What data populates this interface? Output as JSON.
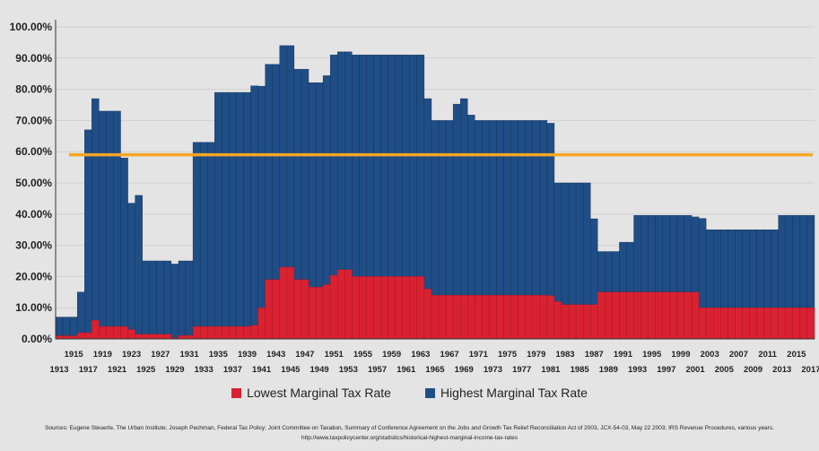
{
  "chart_data": {
    "type": "bar",
    "x": [
      1913,
      1914,
      1915,
      1916,
      1917,
      1918,
      1919,
      1920,
      1921,
      1922,
      1923,
      1924,
      1925,
      1926,
      1927,
      1928,
      1929,
      1930,
      1931,
      1932,
      1933,
      1934,
      1935,
      1936,
      1937,
      1938,
      1939,
      1940,
      1941,
      1942,
      1943,
      1944,
      1945,
      1946,
      1947,
      1948,
      1949,
      1950,
      1951,
      1952,
      1953,
      1954,
      1955,
      1956,
      1957,
      1958,
      1959,
      1960,
      1961,
      1962,
      1963,
      1964,
      1965,
      1966,
      1967,
      1968,
      1969,
      1970,
      1971,
      1972,
      1973,
      1974,
      1975,
      1976,
      1977,
      1978,
      1979,
      1980,
      1981,
      1982,
      1983,
      1984,
      1985,
      1986,
      1987,
      1988,
      1989,
      1990,
      1991,
      1992,
      1993,
      1994,
      1995,
      1996,
      1997,
      1998,
      1999,
      2000,
      2001,
      2002,
      2003,
      2004,
      2005,
      2006,
      2007,
      2008,
      2009,
      2010,
      2011,
      2012,
      2013,
      2014,
      2015,
      2016,
      2017
    ],
    "series": [
      {
        "name": "Highest Marginal Tax Rate",
        "color": "#1f4e86",
        "values": [
          7,
          7,
          7,
          15,
          67,
          77,
          73,
          73,
          73,
          58,
          43.5,
          46,
          25,
          25,
          25,
          25,
          24,
          25,
          25,
          63,
          63,
          63,
          79,
          79,
          79,
          79,
          79,
          81.1,
          81,
          88,
          88,
          94,
          94,
          86.45,
          86.45,
          82.13,
          82.13,
          84.36,
          91,
          92,
          92,
          91,
          91,
          91,
          91,
          91,
          91,
          91,
          91,
          91,
          91,
          77,
          70,
          70,
          70,
          75.25,
          77,
          71.75,
          70,
          70,
          70,
          70,
          70,
          70,
          70,
          70,
          70,
          70,
          69.13,
          50,
          50,
          50,
          50,
          50,
          38.5,
          28,
          28,
          28,
          31,
          31,
          39.6,
          39.6,
          39.6,
          39.6,
          39.6,
          39.6,
          39.6,
          39.6,
          39.1,
          38.6,
          35,
          35,
          35,
          35,
          35,
          35,
          35,
          35,
          35,
          35,
          39.6,
          39.6,
          39.6,
          39.6,
          39.6
        ]
      },
      {
        "name": "Lowest Marginal Tax Rate",
        "color": "#d92231",
        "values": [
          1,
          1,
          1,
          2,
          2,
          6,
          4,
          4,
          4,
          4,
          3,
          1.5,
          1.5,
          1.5,
          1.5,
          1.5,
          0.375,
          1.125,
          1.125,
          4,
          4,
          4,
          4,
          4,
          4,
          4,
          4,
          4.4,
          10,
          19,
          19,
          23,
          23,
          19,
          19,
          16.6,
          16.6,
          17.4,
          20.4,
          22.2,
          22.2,
          20,
          20,
          20,
          20,
          20,
          20,
          20,
          20,
          20,
          20,
          16,
          14,
          14,
          14,
          14,
          14,
          14,
          14,
          14,
          14,
          14,
          14,
          14,
          14,
          14,
          14,
          14,
          13.825,
          12,
          11,
          11,
          11,
          11,
          11,
          15,
          15,
          15,
          15,
          15,
          15,
          15,
          15,
          15,
          15,
          15,
          15,
          15,
          15,
          10,
          10,
          10,
          10,
          10,
          10,
          10,
          10,
          10,
          10,
          10,
          10,
          10,
          10,
          10,
          10
        ]
      }
    ],
    "reference_line": {
      "value": 59,
      "color": "#f5a623"
    },
    "x_tick_labels_top": [
      "1915",
      "1919",
      "1923",
      "1927",
      "1931",
      "1935",
      "1939",
      "1943",
      "1947",
      "1951",
      "1955",
      "1959",
      "1963",
      "1967",
      "1971",
      "1975",
      "1979",
      "1983",
      "1987",
      "1991",
      "1995",
      "1999",
      "2003",
      "2007",
      "2011",
      "2015"
    ],
    "x_tick_labels_bottom": [
      "1913",
      "1917",
      "1921",
      "1925",
      "1929",
      "1933",
      "1937",
      "1941",
      "1945",
      "1949",
      "1953",
      "1957",
      "1961",
      "1965",
      "1969",
      "1973",
      "1977",
      "1981",
      "1985",
      "1989",
      "1993",
      "1997",
      "2001",
      "2005",
      "2009",
      "2013",
      "2017"
    ],
    "y_tick_labels": [
      "0.00%",
      "10.00%",
      "20.00%",
      "30.00%",
      "40.00%",
      "50.00%",
      "60.00%",
      "70.00%",
      "80.00%",
      "90.00%",
      "100.00%"
    ],
    "ylim": [
      0,
      100
    ],
    "grid": true,
    "legend_position": "bottom"
  },
  "legend": {
    "lowest": {
      "label": "Lowest Marginal Tax Rate",
      "color": "#d92231"
    },
    "highest": {
      "label": "Highest Marginal Tax Rate",
      "color": "#1f4e86"
    }
  },
  "sources": {
    "line1": "Sources: Eugene Steuerle, The Urban Institute; Joseph Pechman, Federal Tax Policy; Joint Committee on Taxation, Summary of Conference Agreement on the Jobs and Growth Tax Relief Reconciliation Act of 2003, JCX-54-03, May 22 2003; IRS Revenue Procedures, various years.",
    "line2": "http://www.taxpolicycenter.org/statistics/historical-highest-marginal-income-tax-rates"
  }
}
